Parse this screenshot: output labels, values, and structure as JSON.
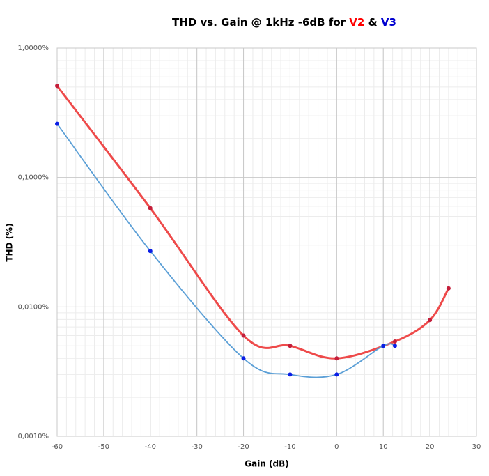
{
  "chart_data": {
    "type": "line",
    "title": "THD vs. Gain @ 1kHz -6dB for",
    "title_joiner": "&",
    "x_label": "Gain (dB)",
    "y_label": "THD (%)",
    "log_y": true,
    "grid": true,
    "minor_grid": true,
    "smooth": true,
    "xlim": [
      -60,
      30
    ],
    "xticks": [
      -60,
      -50,
      -40,
      -30,
      -20,
      -10,
      0,
      10,
      20,
      30
    ],
    "ylim": [
      0.001,
      1
    ],
    "yticks": [
      {
        "value": 0.001,
        "label": "0,0010%"
      },
      {
        "value": 0.01,
        "label": "0,0100%"
      },
      {
        "value": 0.1,
        "label": "0,1000%"
      },
      {
        "value": 1,
        "label": "1,0000%"
      }
    ],
    "series": [
      {
        "name": "V2",
        "color": "#ee4a4a",
        "marker_color": "#c41e3a",
        "label_color": "#ff0000",
        "line_width": 3,
        "x": [
          -60,
          -40,
          -20,
          -10,
          0,
          12.5,
          20,
          24
        ],
        "values": [
          0.51,
          0.058,
          0.006,
          0.005,
          0.004,
          0.0054,
          0.0079,
          0.0139
        ]
      },
      {
        "name": "V3",
        "color": "#5b9fd6",
        "marker_color": "#0a1ee6",
        "label_color": "#0000d0",
        "line_width": 1.8,
        "x": [
          -60,
          -40,
          -20,
          -10,
          0,
          10,
          12.5
        ],
        "values": [
          0.26,
          0.027,
          0.004,
          0.003,
          0.003,
          0.005,
          0.005
        ]
      }
    ]
  }
}
